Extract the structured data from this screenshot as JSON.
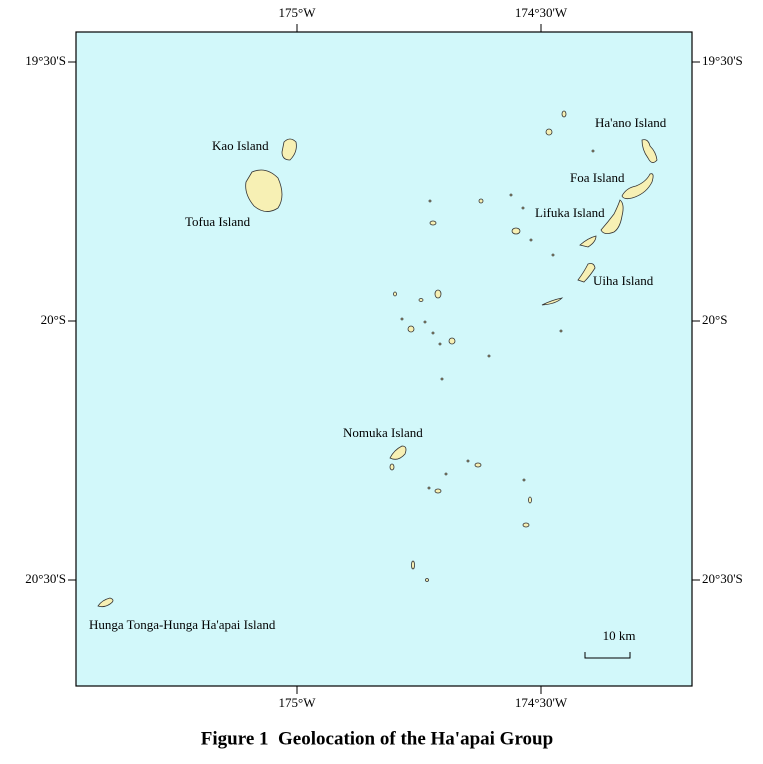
{
  "map": {
    "lon_labels": [
      "175°W",
      "174°30'W"
    ],
    "lat_labels": [
      "19°30'S",
      "20°S",
      "20°30'S"
    ],
    "places": [
      "Ha'ano Island",
      "Kao Island",
      "Foa Island",
      "Tofua Island",
      "Lifuka Island",
      "Uiha Island",
      "Nomuka Island",
      "Hunga Tonga-Hunga Ha'apai Island"
    ],
    "scale_bar": "10 km"
  },
  "caption": "Figure 1  Geolocation of the Ha'apai Group"
}
